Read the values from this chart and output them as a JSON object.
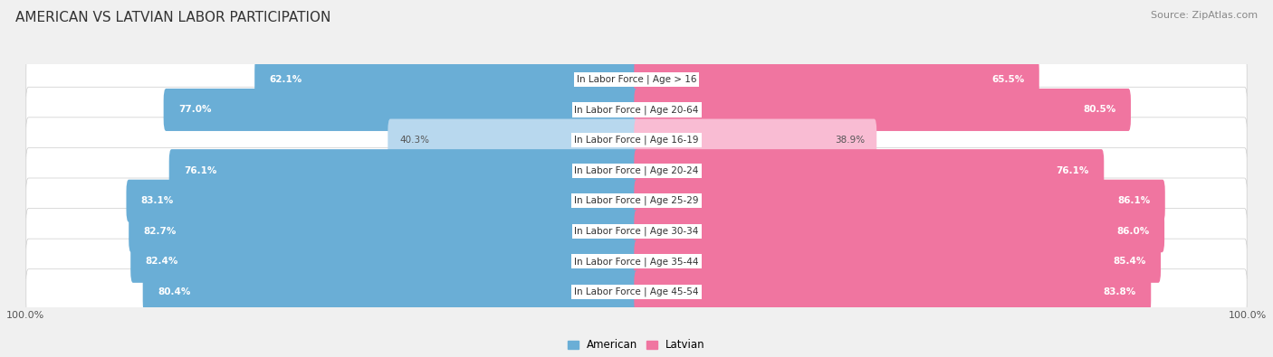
{
  "title": "AMERICAN VS LATVIAN LABOR PARTICIPATION",
  "source": "Source: ZipAtlas.com",
  "categories": [
    "In Labor Force | Age > 16",
    "In Labor Force | Age 20-64",
    "In Labor Force | Age 16-19",
    "In Labor Force | Age 20-24",
    "In Labor Force | Age 25-29",
    "In Labor Force | Age 30-34",
    "In Labor Force | Age 35-44",
    "In Labor Force | Age 45-54"
  ],
  "american_values": [
    62.1,
    77.0,
    40.3,
    76.1,
    83.1,
    82.7,
    82.4,
    80.4
  ],
  "latvian_values": [
    65.5,
    80.5,
    38.9,
    76.1,
    86.1,
    86.0,
    85.4,
    83.8
  ],
  "american_color": "#6aaed6",
  "latvian_color": "#f075a0",
  "american_color_light": "#b8d8ee",
  "latvian_color_light": "#f9bcd3",
  "bg_color": "#f0f0f0",
  "row_bg_color": "#e8e8e8",
  "row_bg_alt": "#dcdcdc",
  "max_value": 100.0,
  "title_fontsize": 11,
  "label_fontsize": 7.5,
  "value_fontsize": 7.5,
  "legend_fontsize": 8.5,
  "light_rows": [
    2
  ]
}
